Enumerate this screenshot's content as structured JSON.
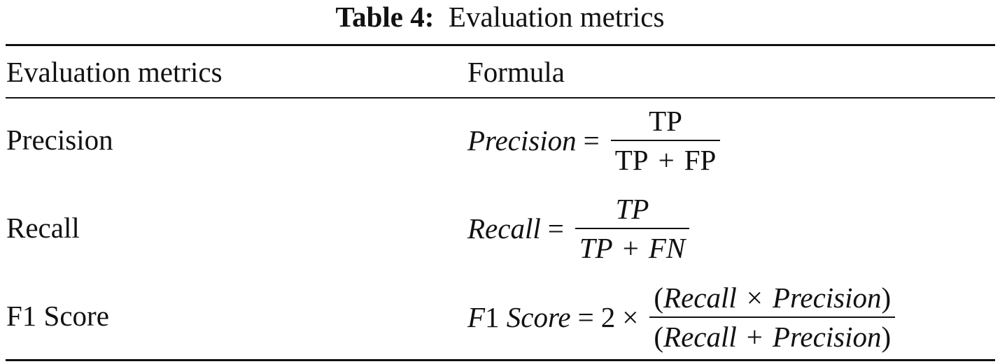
{
  "caption": {
    "label": "Table 4:",
    "title": "Evaluation metrics"
  },
  "table": {
    "headers": {
      "metric": "Evaluation metrics",
      "formula": "Formula"
    },
    "rows": [
      {
        "metric": "Precision",
        "formula": {
          "lhs": "Precision",
          "eq": "=",
          "num": "TP",
          "den_a": "TP",
          "den_op": "+",
          "den_b": "FP"
        }
      },
      {
        "metric": "Recall",
        "formula": {
          "lhs": "Recall",
          "eq": "=",
          "num": "TP",
          "den_a": "TP",
          "den_op": "+",
          "den_b": "FN"
        }
      },
      {
        "metric": "F1 Score",
        "formula": {
          "lhs_var": "F",
          "lhs_num": "1",
          "lhs_word": "Score",
          "eq": "=",
          "coef": "2",
          "times": "×",
          "num_open": "(",
          "num_a": "Recall",
          "num_op": "×",
          "num_b": "Precision",
          "num_close": ")",
          "den_open": "(",
          "den_a": "Recall",
          "den_op": "+",
          "den_b": "Precision",
          "den_close": ")"
        }
      }
    ]
  }
}
